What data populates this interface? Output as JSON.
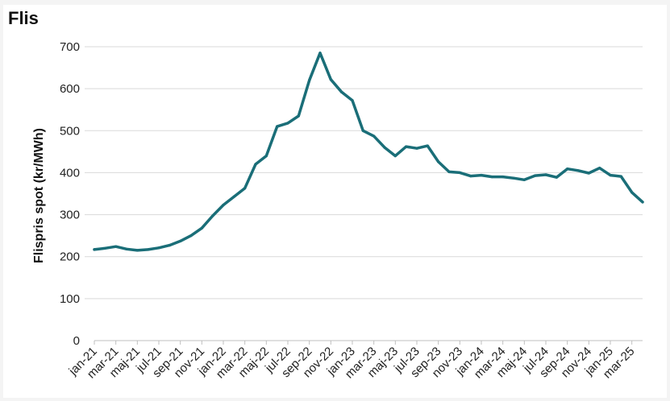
{
  "title": "Flis",
  "chart_data": {
    "type": "line",
    "title": "Flis",
    "xlabel": "",
    "ylabel": "Flispris spot (kr/MWh)",
    "ylim": [
      0,
      700
    ],
    "yticks": [
      0,
      100,
      200,
      300,
      400,
      500,
      600,
      700
    ],
    "grid": true,
    "legend": "none",
    "color": "#1a6e78",
    "x_tick_labels": [
      "jan-21",
      "mar-21",
      "maj-21",
      "jul-21",
      "sep-21",
      "nov-21",
      "jan-22",
      "mar-22",
      "maj-22",
      "jul-22",
      "sep-22",
      "nov-22",
      "jan-23",
      "mar-23",
      "maj-23",
      "jul-23",
      "sep-23",
      "nov-23",
      "jan-24",
      "mar-24",
      "maj-24",
      "jul-24",
      "sep-24",
      "nov-24",
      "jan-25",
      "mar-25"
    ],
    "x": [
      "jan-21",
      "feb-21",
      "mar-21",
      "apr-21",
      "maj-21",
      "jun-21",
      "jul-21",
      "aug-21",
      "sep-21",
      "okt-21",
      "nov-21",
      "dec-21",
      "jan-22",
      "feb-22",
      "mar-22",
      "apr-22",
      "maj-22",
      "jun-22",
      "jul-22",
      "aug-22",
      "sep-22",
      "okt-22",
      "nov-22",
      "dec-22",
      "jan-23",
      "feb-23",
      "mar-23",
      "apr-23",
      "maj-23",
      "jun-23",
      "jul-23",
      "aug-23",
      "sep-23",
      "okt-23",
      "nov-23",
      "dec-23",
      "jan-24",
      "feb-24",
      "mar-24",
      "apr-24",
      "maj-24",
      "jun-24",
      "jul-24",
      "aug-24",
      "sep-24",
      "okt-24",
      "nov-24",
      "dec-24",
      "jan-25",
      "feb-25",
      "mar-25",
      "apr-25"
    ],
    "series": [
      {
        "values": [
          217,
          220,
          224,
          218,
          215,
          217,
          221,
          227,
          237,
          250,
          268,
          297,
          323,
          343,
          363,
          420,
          440,
          510,
          518,
          535,
          620,
          685,
          622,
          592,
          572,
          500,
          487,
          460,
          440,
          462,
          458,
          464,
          426,
          402,
          400,
          392,
          394,
          390,
          390,
          387,
          383,
          393,
          395,
          389,
          409,
          405,
          399,
          411,
          394,
          391,
          353,
          330
        ]
      }
    ]
  }
}
